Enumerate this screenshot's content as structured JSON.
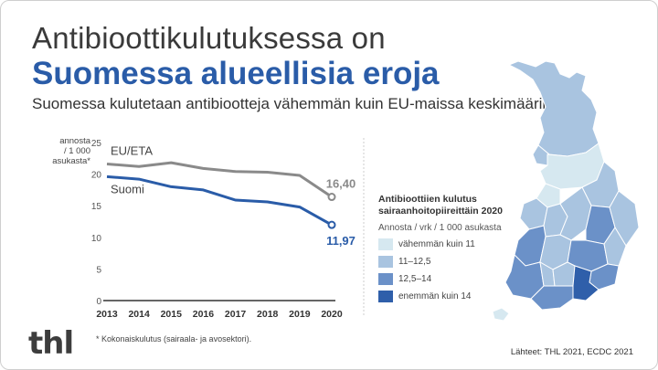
{
  "title_line1": "Antibioottikulutuksessa on",
  "title_line2": "Suomessa alueellisia eroja",
  "subtitle": "Suomessa kulutetaan antibiootteja vähemmän kuin EU-maissa keskimäärin.",
  "chart_data": {
    "type": "line",
    "x": [
      2013,
      2014,
      2015,
      2016,
      2017,
      2018,
      2019,
      2020
    ],
    "series": [
      {
        "name": "EU/ETA",
        "values": [
          21.6,
          21.2,
          21.8,
          20.9,
          20.4,
          20.3,
          19.8,
          16.4
        ],
        "end_label": "16,40",
        "color": "#8a8a8a"
      },
      {
        "name": "Suomi",
        "values": [
          19.6,
          19.2,
          18.0,
          17.5,
          15.9,
          15.6,
          14.8,
          11.97
        ],
        "end_label": "11,97",
        "color": "#2a5ca8"
      }
    ],
    "ylabel_lines": [
      "annosta",
      "/ 1 000",
      "asukasta*"
    ],
    "y_ticks": [
      0,
      5,
      10,
      15,
      20,
      25
    ],
    "ylim": [
      0,
      25
    ],
    "grid": false
  },
  "footnote": "* Kokonaiskulutus (sairaala- ja avosektori).",
  "source": "Lähteet: THL 2021, ECDC 2021",
  "logo": "thl",
  "map_legend": {
    "title_line1": "Antibioottiien kulutus",
    "title_line2": "sairaanhoitopiireittäin 2020",
    "unit": "Annosta / vrk / 1 000 asukasta",
    "items": [
      {
        "label": "vähemmän kuin 11",
        "color": "#d6e8f0"
      },
      {
        "label": "11–12,5",
        "color": "#a9c4e0"
      },
      {
        "label": "12,5–14",
        "color": "#6b91c8"
      },
      {
        "label": "enemmän kuin 14",
        "color": "#2f5faa"
      }
    ]
  }
}
